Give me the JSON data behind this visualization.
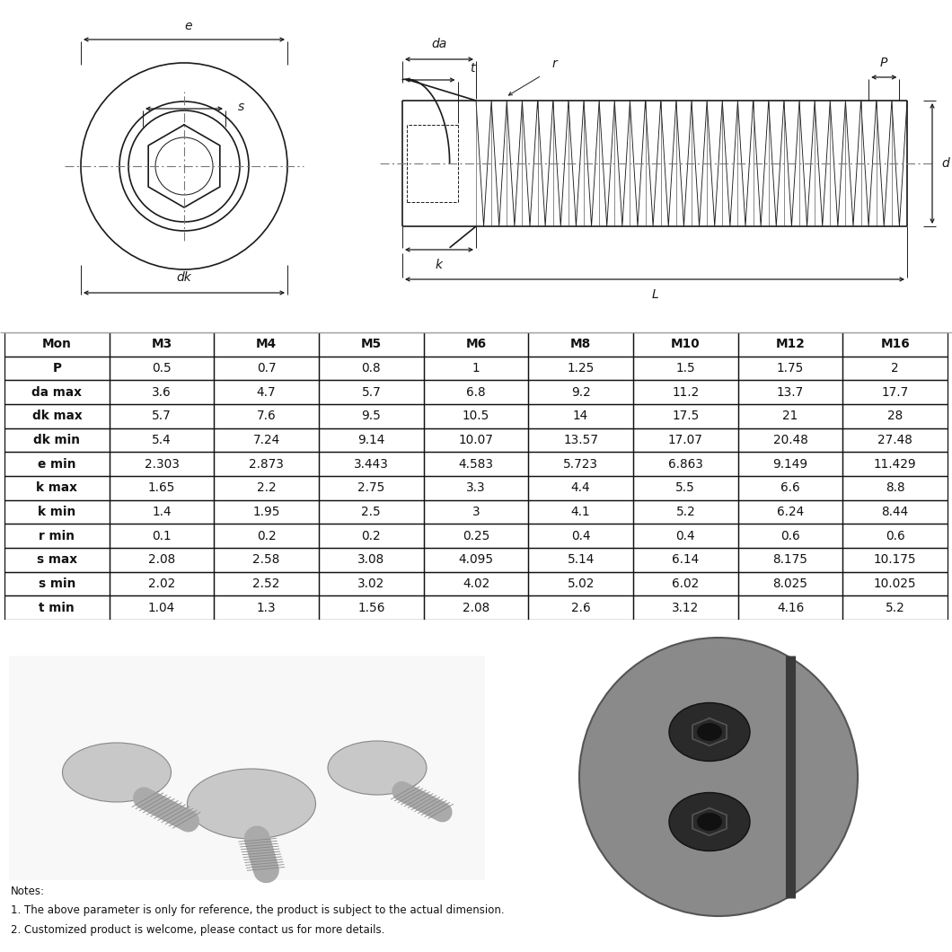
{
  "table_headers": [
    "Mon",
    "M3",
    "M4",
    "M5",
    "M6",
    "M8",
    "M10",
    "M12",
    "M16"
  ],
  "table_rows": [
    [
      "P",
      "0.5",
      "0.7",
      "0.8",
      "1",
      "1.25",
      "1.5",
      "1.75",
      "2"
    ],
    [
      "da max",
      "3.6",
      "4.7",
      "5.7",
      "6.8",
      "9.2",
      "11.2",
      "13.7",
      "17.7"
    ],
    [
      "dk max",
      "5.7",
      "7.6",
      "9.5",
      "10.5",
      "14",
      "17.5",
      "21",
      "28"
    ],
    [
      "dk min",
      "5.4",
      "7.24",
      "9.14",
      "10.07",
      "13.57",
      "17.07",
      "20.48",
      "27.48"
    ],
    [
      "e min",
      "2.303",
      "2.873",
      "3.443",
      "4.583",
      "5.723",
      "6.863",
      "9.149",
      "11.429"
    ],
    [
      "k max",
      "1.65",
      "2.2",
      "2.75",
      "3.3",
      "4.4",
      "5.5",
      "6.6",
      "8.8"
    ],
    [
      "k min",
      "1.4",
      "1.95",
      "2.5",
      "3",
      "4.1",
      "5.2",
      "6.24",
      "8.44"
    ],
    [
      "r min",
      "0.1",
      "0.2",
      "0.2",
      "0.25",
      "0.4",
      "0.4",
      "0.6",
      "0.6"
    ],
    [
      "s max",
      "2.08",
      "2.58",
      "3.08",
      "4.095",
      "5.14",
      "6.14",
      "8.175",
      "10.175"
    ],
    [
      "s min",
      "2.02",
      "2.52",
      "3.02",
      "4.02",
      "5.02",
      "6.02",
      "8.025",
      "10.025"
    ],
    [
      "t min",
      "1.04",
      "1.3",
      "1.56",
      "2.08",
      "2.6",
      "3.12",
      "4.16",
      "5.2"
    ]
  ],
  "notes": [
    "Notes:",
    "1. The above parameter is only for reference, the product is subject to the actual dimension.",
    "2. Customized product is welcome, please contact us for more details."
  ]
}
